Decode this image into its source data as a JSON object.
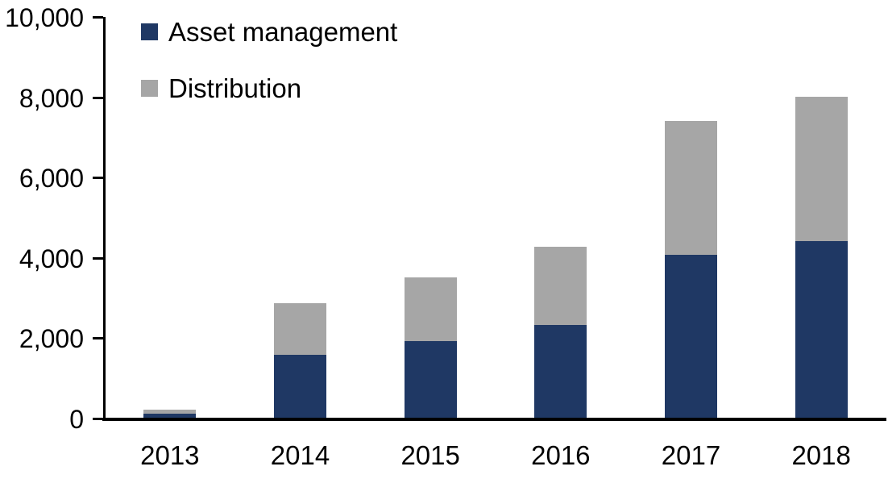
{
  "chart_data": {
    "type": "bar",
    "stacked": true,
    "title": "",
    "xlabel": "",
    "ylabel": "",
    "categories": [
      "2013",
      "2014",
      "2015",
      "2016",
      "2017",
      "2018"
    ],
    "series": [
      {
        "name": "Asset management",
        "color": "#1F3864",
        "values": [
          110,
          1560,
          1900,
          2300,
          4050,
          4400
        ]
      },
      {
        "name": "Distribution",
        "color": "#A6A6A6",
        "values": [
          100,
          1300,
          1600,
          1950,
          3330,
          3600
        ]
      }
    ],
    "totals": [
      210,
      2860,
      3500,
      4250,
      7380,
      8000
    ],
    "ylim": [
      0,
      10000
    ],
    "ytick_interval": 2000,
    "ytick_labels": [
      "0",
      "2,000",
      "4,000",
      "6,000",
      "8,000",
      "10,000"
    ],
    "grid": false,
    "legend_position": "top-left",
    "axis_color": "#000000",
    "background_color": "#FFFFFF"
  }
}
